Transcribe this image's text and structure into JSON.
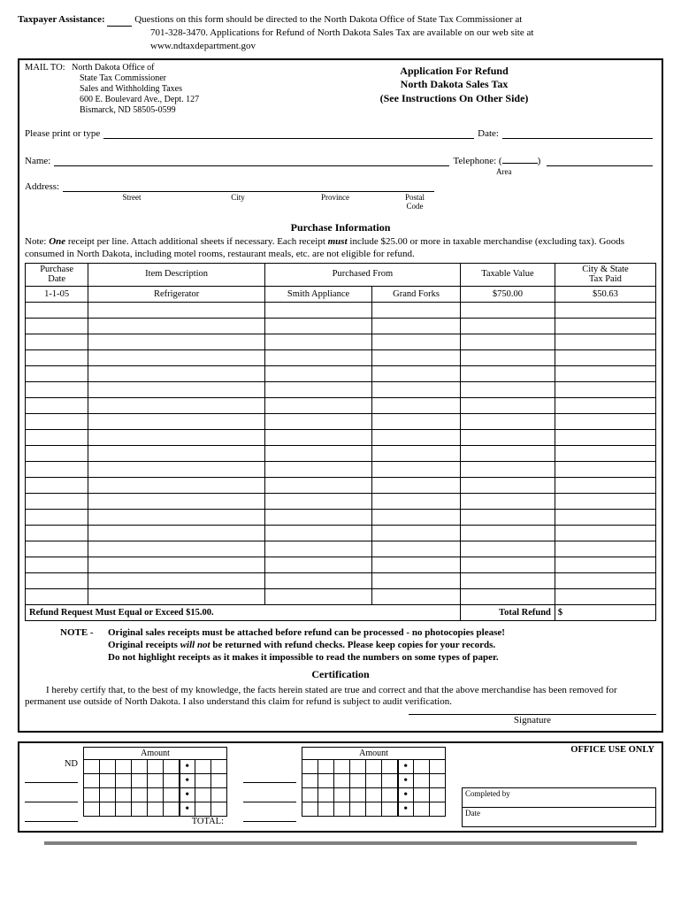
{
  "assistance": {
    "label": "Taxpayer Assistance:",
    "text1": "Questions on this form should be directed to the North Dakota Office of State Tax Commissioner at",
    "text2": "701-328-3470.  Applications for Refund of North Dakota Sales Tax are available on our web site at",
    "text3": "www.ndtaxdepartment.gov"
  },
  "mailto": {
    "label": "MAIL TO:",
    "line1": "North Dakota Office of",
    "line2": "State Tax Commissioner",
    "line3": "Sales and Withholding Taxes",
    "line4": "600 E. Boulevard Ave., Dept. 127",
    "line5": "Bismarck, ND 58505-0599"
  },
  "title": {
    "line1": "Application For Refund",
    "line2": "North Dakota Sales Tax",
    "line3": "(See Instructions On Other Side)"
  },
  "fields": {
    "print_lbl": "Please print or type",
    "date_lbl": "Date:",
    "name_lbl": "Name:",
    "tel_lbl": "Telephone:",
    "area_lbl": "Area",
    "addr_lbl": "Address:",
    "street": "Street",
    "city": "City",
    "province": "Province",
    "postal": "Postal",
    "code": "Code"
  },
  "purchase": {
    "title": "Purchase Information",
    "note_a": "Note: ",
    "note_one": "One",
    "note_b": " receipt per line. Attach additional sheets if necessary. Each receipt ",
    "note_must": "must",
    "note_c": " include $25.00 or more in taxable merchandise (excluding tax). Goods consumed in North Dakota, including motel rooms, restaurant meals, etc. are not eligible for refund.",
    "headers": {
      "h1a": "Purchase",
      "h1b": "Date",
      "h2": "Item Description",
      "h3": "Purchased From",
      "h4": "Taxable Value",
      "h5a": "City & State",
      "h5b": "Tax Paid"
    },
    "example": {
      "date": "1-1-05",
      "desc": "Refrigerator",
      "from1": "Smith Appliance",
      "from2": "Grand Forks",
      "value": "$750.00",
      "tax": "$50.63"
    },
    "blank_rows": 19,
    "foot_left": "Refund Request Must Equal or Exceed $15.00.",
    "foot_right": "Total Refund",
    "foot_sym": "$"
  },
  "notes": {
    "lead": "NOTE -",
    "n1": "Original sales receipts must be attached before refund can be processed - no photocopies please!",
    "n2a": "Original receipts ",
    "n2b": "will not",
    "n2c": " be returned with refund checks. Please keep copies for your records.",
    "n3": "Do not highlight receipts as it makes it impossible to read the numbers on some types of paper."
  },
  "cert": {
    "title": "Certification",
    "text": "I hereby certify that, to the best of my knowledge, the facts herein stated are true and correct and that the above merchandise has been removed for permanent use outside of North Dakota. I also understand this claim for refund is subject to audit verification.",
    "sig": "Signature"
  },
  "office": {
    "label": "OFFICE USE ONLY",
    "amount": "Amount",
    "nd": "ND",
    "total": "TOTAL:",
    "completed": "Completed by",
    "date": "Date"
  }
}
